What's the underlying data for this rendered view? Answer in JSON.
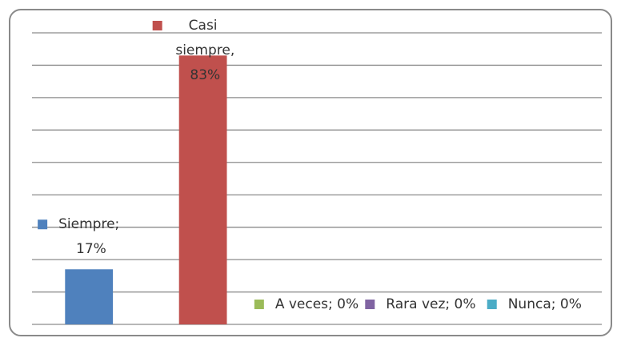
{
  "chart_data": {
    "type": "bar",
    "values": [
      17,
      83,
      0,
      0,
      0
    ],
    "value_labels": [
      "Siempre; 17%",
      "Casi siempre, 83%",
      "A veces; 0%",
      "Rara vez; 0%",
      "Nunca; 0%"
    ],
    "colors": [
      "#4f81bd",
      "#c0504d",
      "#9bbb59",
      "#8064a2",
      "#4bacc6"
    ],
    "ylim": [
      0,
      90
    ],
    "yticks": [
      0,
      10,
      20,
      30,
      40,
      50,
      60,
      70,
      80,
      90
    ],
    "grid": true
  }
}
